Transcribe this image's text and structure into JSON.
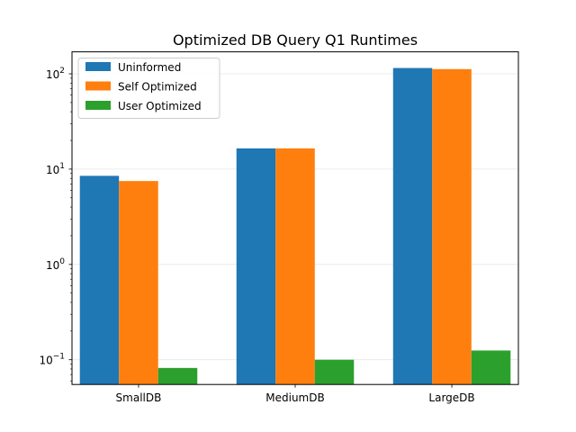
{
  "chart_data": {
    "type": "bar",
    "title": "Optimized DB Query Q1 Runtimes",
    "xlabel": "",
    "ylabel": "",
    "categories": [
      "SmallDB",
      "MediumDB",
      "LargeDB"
    ],
    "series": [
      {
        "name": "Uninformed",
        "color": "#1f77b4",
        "values": [
          8.5,
          16.5,
          115
        ]
      },
      {
        "name": "Self Optimized",
        "color": "#ff7f0e",
        "values": [
          7.5,
          16.5,
          112
        ]
      },
      {
        "name": "User Optimized",
        "color": "#2ca02c",
        "values": [
          0.082,
          0.1,
          0.125
        ]
      }
    ],
    "yscale": "log",
    "ylim": [
      0.055,
      170
    ],
    "yticks": [
      {
        "value": 0.1,
        "base": "10",
        "exp": "−1"
      },
      {
        "value": 1,
        "base": "10",
        "exp": "0"
      },
      {
        "value": 10,
        "base": "10",
        "exp": "1"
      },
      {
        "value": 100,
        "base": "10",
        "exp": "2"
      }
    ],
    "grid": true,
    "legend": {
      "position": "top-left"
    }
  }
}
